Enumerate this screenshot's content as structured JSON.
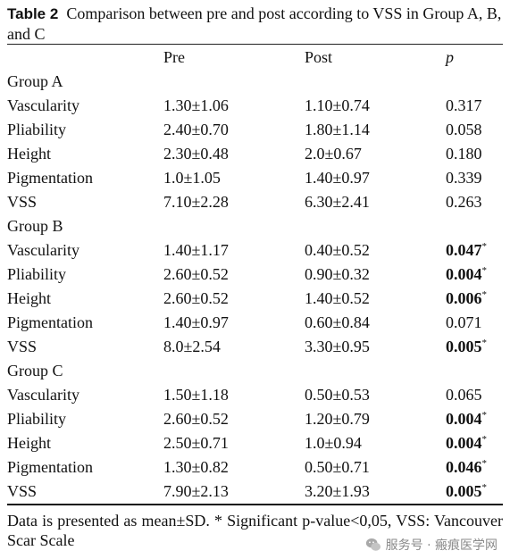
{
  "caption": {
    "label": "Table 2",
    "text": "Comparison between pre and post according to VSS in Group A, B, and C"
  },
  "headers": [
    "",
    "Pre",
    "Post",
    "p"
  ],
  "groups": [
    {
      "name": "Group A",
      "rows": [
        {
          "measure": "Vascularity",
          "pre": "1.30±1.06",
          "post": "1.10±0.74",
          "p": "0.317",
          "sig": false
        },
        {
          "measure": "Pliability",
          "pre": "2.40±0.70",
          "post": "1.80±1.14",
          "p": "0.058",
          "sig": false
        },
        {
          "measure": "Height",
          "pre": "2.30±0.48",
          "post": "2.0±0.67",
          "p": "0.180",
          "sig": false
        },
        {
          "measure": "Pigmentation",
          "pre": "1.0±1.05",
          "post": "1.40±0.97",
          "p": "0.339",
          "sig": false
        },
        {
          "measure": "VSS",
          "pre": "7.10±2.28",
          "post": "6.30±2.41",
          "p": "0.263",
          "sig": false
        }
      ]
    },
    {
      "name": "Group B",
      "rows": [
        {
          "measure": "Vascularity",
          "pre": "1.40±1.17",
          "post": "0.40±0.52",
          "p": "0.047",
          "sig": true
        },
        {
          "measure": "Pliability",
          "pre": "2.60±0.52",
          "post": "0.90±0.32",
          "p": "0.004",
          "sig": true
        },
        {
          "measure": "Height",
          "pre": "2.60±0.52",
          "post": "1.40±0.52",
          "p": "0.006",
          "sig": true
        },
        {
          "measure": "Pigmentation",
          "pre": "1.40±0.97",
          "post": "0.60±0.84",
          "p": "0.071",
          "sig": false
        },
        {
          "measure": "VSS",
          "pre": "8.0±2.54",
          "post": "3.30±0.95",
          "p": "0.005",
          "sig": true
        }
      ]
    },
    {
      "name": "Group C",
      "rows": [
        {
          "measure": "Vascularity",
          "pre": "1.50±1.18",
          "post": "0.50±0.53",
          "p": "0.065",
          "sig": false
        },
        {
          "measure": "Pliability",
          "pre": "2.60±0.52",
          "post": "1.20±0.79",
          "p": "0.004",
          "sig": true
        },
        {
          "measure": "Height",
          "pre": "2.50±0.71",
          "post": "1.0±0.94",
          "p": "0.004",
          "sig": true
        },
        {
          "measure": "Pigmentation",
          "pre": "1.30±0.82",
          "post": "0.50±0.71",
          "p": "0.046",
          "sig": true
        },
        {
          "measure": "VSS",
          "pre": "7.90±2.13",
          "post": "3.20±1.93",
          "p": "0.005",
          "sig": true
        }
      ]
    }
  ],
  "significance_marker": "*",
  "footnote": "Data is presented as mean±SD. * Significant p-value<0,05, VSS: Vancouver Scar Scale",
  "watermark": {
    "icon": "wechat-icon",
    "text": "服务号 · 瘢痕医学网"
  }
}
